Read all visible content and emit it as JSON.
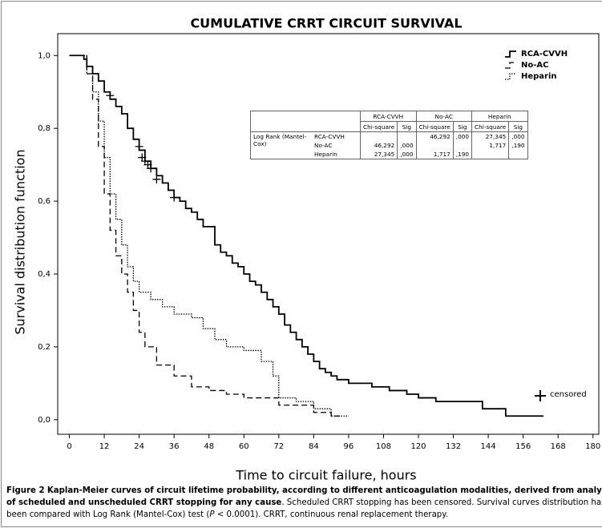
{
  "chart_data": {
    "type": "step",
    "title": "CUMULATIVE CRRT CIRCUIT SURVIVAL",
    "x_label": "Time to circuit failure, hours",
    "y_label": "Survival distribution function",
    "xlim": [
      -4,
      182
    ],
    "ylim": [
      -0.04,
      1.06
    ],
    "xticks": [
      0,
      12,
      24,
      36,
      48,
      60,
      72,
      84,
      96,
      108,
      120,
      132,
      144,
      156,
      168,
      180
    ],
    "yticks": [
      {
        "value": 0,
        "label": "0,0"
      },
      {
        "value": 0.2,
        "label": "0,2"
      },
      {
        "value": 0.4,
        "label": "0,4"
      },
      {
        "value": 0.6,
        "label": "0,6"
      },
      {
        "value": 0.8,
        "label": "0,8"
      },
      {
        "value": 1,
        "label": "1,0"
      }
    ],
    "legend": "upper right",
    "series": [
      {
        "name": "RCA-CVVH",
        "color": "#000000",
        "dash": "solid",
        "x": [
          0,
          5,
          6,
          8,
          10,
          12,
          14,
          16,
          18,
          20,
          22,
          24,
          26,
          28,
          30,
          32,
          34,
          36,
          38,
          40,
          42,
          44,
          46,
          50,
          52,
          54,
          56,
          58,
          60,
          62,
          64,
          66,
          68,
          70,
          72,
          74,
          76,
          78,
          80,
          82,
          84,
          86,
          88,
          90,
          92,
          96,
          104,
          110,
          116,
          120,
          126,
          142,
          150,
          163
        ],
        "values": [
          1,
          0.99,
          0.97,
          0.95,
          0.93,
          0.9,
          0.88,
          0.86,
          0.84,
          0.8,
          0.77,
          0.74,
          0.71,
          0.69,
          0.67,
          0.65,
          0.63,
          0.61,
          0.6,
          0.58,
          0.57,
          0.55,
          0.53,
          0.48,
          0.46,
          0.45,
          0.43,
          0.42,
          0.4,
          0.38,
          0.37,
          0.35,
          0.33,
          0.31,
          0.29,
          0.26,
          0.24,
          0.22,
          0.2,
          0.18,
          0.16,
          0.14,
          0.13,
          0.12,
          0.11,
          0.1,
          0.09,
          0.08,
          0.07,
          0.06,
          0.05,
          0.03,
          0.01,
          0.01
        ],
        "censored": {
          "x": [
            14,
            24,
            25,
            26,
            27,
            28,
            30,
            36
          ],
          "values": [
            0.89,
            0.75,
            0.72,
            0.71,
            0.7,
            0.69,
            0.66,
            0.61
          ]
        }
      },
      {
        "name": "No-AC",
        "color": "#000000",
        "dash": "dashed",
        "x": [
          0,
          4,
          6,
          8,
          10,
          12,
          14,
          16,
          18,
          20,
          22,
          24,
          26,
          30,
          36,
          42,
          48,
          54,
          60,
          72,
          84,
          90,
          93
        ],
        "values": [
          1,
          1,
          0.95,
          0.88,
          0.75,
          0.62,
          0.52,
          0.45,
          0.4,
          0.35,
          0.3,
          0.24,
          0.2,
          0.15,
          0.12,
          0.09,
          0.08,
          0.07,
          0.06,
          0.04,
          0.02,
          0.01,
          0.01
        ]
      },
      {
        "name": "Heparin",
        "color": "#000000",
        "dash": "dotted",
        "x": [
          0,
          4,
          6,
          8,
          10,
          12,
          14,
          16,
          18,
          20,
          22,
          24,
          28,
          32,
          36,
          42,
          46,
          50,
          54,
          60,
          66,
          70,
          72,
          78,
          84,
          90,
          96
        ],
        "values": [
          1,
          1,
          0.95,
          0.9,
          0.82,
          0.72,
          0.62,
          0.55,
          0.48,
          0.42,
          0.38,
          0.35,
          0.33,
          0.31,
          0.29,
          0.28,
          0.25,
          0.22,
          0.2,
          0.19,
          0.16,
          0.12,
          0.06,
          0.05,
          0.03,
          0.01,
          0.01
        ]
      }
    ],
    "censored_label": "censored",
    "table": {
      "groups": [
        "RCA-CVVH",
        "No-AC",
        "Heparin"
      ],
      "subheaders": [
        "Chi-square",
        "Sig"
      ],
      "row_header": "Log Rank (Mantel-Cox)",
      "rows": [
        {
          "name": "RCA-CVVH",
          "cells": [
            null,
            null,
            "46,292",
            ",000",
            "27,345",
            ",000"
          ]
        },
        {
          "name": "No-AC",
          "cells": [
            "46,292",
            ",000",
            null,
            null,
            "1,717",
            ",190"
          ]
        },
        {
          "name": "Heparin",
          "cells": [
            "27,345",
            ",000",
            "1,717",
            ",190",
            null,
            null
          ]
        }
      ]
    }
  },
  "caption": {
    "label": "Figure 2",
    "bold": "Kaplan-Meier curves of circuit lifetime probability, according to different anticoagulation modalities, derived from analysis of scheduled and unscheduled CRRT stopping for any cause",
    "text_before": ". Scheduled CRRT stopping has been censored. Survival curves distribution has been compared with Log Rank (Mantel-Cox) test (",
    "italic": "P",
    "text_after": " < 0.0001). CRRT, continuous renal replacement therapy."
  }
}
